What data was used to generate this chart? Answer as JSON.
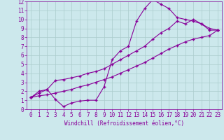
{
  "xlabel": "Windchill (Refroidissement éolien,°C)",
  "xlim": [
    -0.5,
    23.5
  ],
  "ylim": [
    0,
    12
  ],
  "xticks": [
    0,
    1,
    2,
    3,
    4,
    5,
    6,
    7,
    8,
    9,
    10,
    11,
    12,
    13,
    14,
    15,
    16,
    17,
    18,
    19,
    20,
    21,
    22,
    23
  ],
  "yticks": [
    0,
    1,
    2,
    3,
    4,
    5,
    6,
    7,
    8,
    9,
    10,
    11,
    12
  ],
  "background_color": "#cce8ec",
  "grid_color": "#aacccc",
  "line_color": "#880099",
  "line1_x": [
    0,
    1,
    2,
    3,
    4,
    5,
    6,
    7,
    8,
    9,
    10,
    11,
    12,
    13,
    14,
    15,
    16,
    17,
    18,
    19,
    20,
    21,
    22,
    23
  ],
  "line1_y": [
    1.3,
    2.0,
    2.2,
    1.1,
    0.3,
    0.7,
    0.9,
    1.0,
    1.0,
    2.5,
    5.5,
    6.5,
    7.0,
    9.8,
    11.2,
    12.2,
    11.7,
    11.2,
    10.2,
    10.0,
    9.8,
    9.5,
    8.8,
    8.8
  ],
  "line2_x": [
    0,
    1,
    2,
    3,
    4,
    5,
    6,
    7,
    8,
    9,
    10,
    11,
    12,
    13,
    14,
    15,
    16,
    17,
    18,
    19,
    20,
    21,
    22,
    23
  ],
  "line2_y": [
    1.3,
    1.8,
    2.2,
    3.2,
    3.3,
    3.5,
    3.7,
    4.0,
    4.2,
    4.5,
    5.0,
    5.5,
    6.0,
    6.5,
    7.0,
    7.8,
    8.5,
    9.0,
    9.8,
    9.5,
    10.0,
    9.5,
    9.0,
    8.8
  ],
  "line3_x": [
    0,
    1,
    2,
    3,
    4,
    5,
    6,
    7,
    8,
    9,
    10,
    11,
    12,
    13,
    14,
    15,
    16,
    17,
    18,
    19,
    20,
    21,
    22,
    23
  ],
  "line3_y": [
    1.3,
    1.5,
    1.6,
    1.8,
    2.0,
    2.2,
    2.5,
    2.7,
    3.0,
    3.3,
    3.6,
    4.0,
    4.4,
    4.8,
    5.2,
    5.7,
    6.2,
    6.7,
    7.1,
    7.5,
    7.8,
    8.0,
    8.2,
    8.8
  ],
  "marker": "+",
  "markersize": 2.5,
  "linewidth": 0.8,
  "tick_fontsize": 5.5,
  "xlabel_fontsize": 5.5
}
